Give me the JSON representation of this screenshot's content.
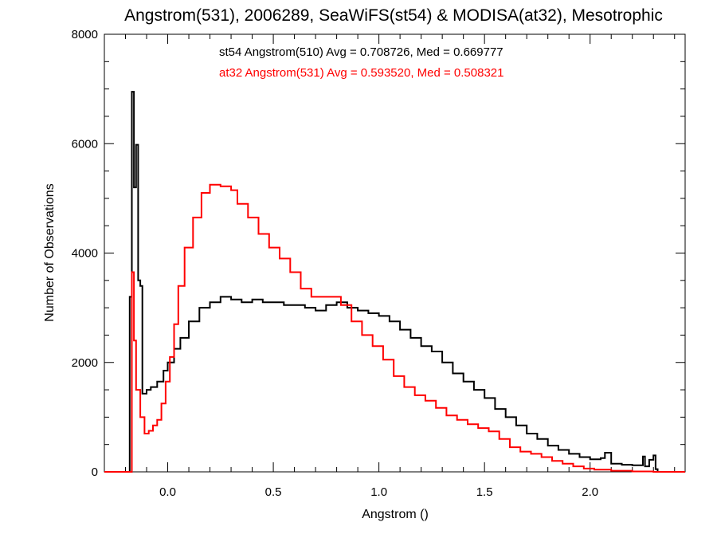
{
  "chart_data": {
    "type": "line",
    "step": true,
    "title": "Angstrom(531), 2006289, SeaWiFS(st54) & MODISA(at32), Mesotrophic",
    "xlabel": "Angstrom ()",
    "ylabel": "Number of Observations",
    "xlim": [
      -0.3,
      2.45
    ],
    "ylim": [
      0,
      8000
    ],
    "xticks": [
      0.0,
      0.5,
      1.0,
      1.5,
      2.0
    ],
    "xtick_labels": [
      "0.0",
      "0.5",
      "1.0",
      "1.5",
      "2.0"
    ],
    "yticks": [
      0,
      2000,
      4000,
      6000,
      8000
    ],
    "ytick_labels": [
      "0",
      "2000",
      "4000",
      "6000",
      "8000"
    ],
    "annotations": [
      {
        "text": "st54 Angstrom(510) Avg = 0.708726, Med = 0.669777",
        "color": "#000000"
      },
      {
        "text": "at32 Angstrom(531) Avg = 0.593520, Med = 0.508321",
        "color": "#ff0000"
      }
    ],
    "series": [
      {
        "color": "#000000",
        "points": [
          [
            -0.3,
            0
          ],
          [
            -0.19,
            0
          ],
          [
            -0.18,
            3200
          ],
          [
            -0.17,
            6950
          ],
          [
            -0.16,
            5200
          ],
          [
            -0.15,
            5980
          ],
          [
            -0.14,
            3500
          ],
          [
            -0.13,
            3400
          ],
          [
            -0.12,
            1430
          ],
          [
            -0.1,
            1500
          ],
          [
            -0.08,
            1550
          ],
          [
            -0.05,
            1650
          ],
          [
            -0.02,
            1850
          ],
          [
            0.0,
            2000
          ],
          [
            0.03,
            2250
          ],
          [
            0.06,
            2450
          ],
          [
            0.1,
            2750
          ],
          [
            0.15,
            3000
          ],
          [
            0.2,
            3100
          ],
          [
            0.25,
            3200
          ],
          [
            0.3,
            3150
          ],
          [
            0.35,
            3100
          ],
          [
            0.4,
            3150
          ],
          [
            0.45,
            3100
          ],
          [
            0.5,
            3100
          ],
          [
            0.55,
            3050
          ],
          [
            0.6,
            3050
          ],
          [
            0.65,
            3000
          ],
          [
            0.7,
            2950
          ],
          [
            0.75,
            3050
          ],
          [
            0.8,
            3100
          ],
          [
            0.85,
            3000
          ],
          [
            0.9,
            2950
          ],
          [
            0.95,
            2900
          ],
          [
            1.0,
            2850
          ],
          [
            1.05,
            2750
          ],
          [
            1.1,
            2600
          ],
          [
            1.15,
            2450
          ],
          [
            1.2,
            2300
          ],
          [
            1.25,
            2200
          ],
          [
            1.3,
            2000
          ],
          [
            1.35,
            1800
          ],
          [
            1.4,
            1650
          ],
          [
            1.45,
            1500
          ],
          [
            1.5,
            1350
          ],
          [
            1.55,
            1150
          ],
          [
            1.6,
            1000
          ],
          [
            1.65,
            850
          ],
          [
            1.7,
            700
          ],
          [
            1.75,
            600
          ],
          [
            1.8,
            480
          ],
          [
            1.85,
            400
          ],
          [
            1.9,
            330
          ],
          [
            1.95,
            270
          ],
          [
            2.0,
            230
          ],
          [
            2.05,
            250
          ],
          [
            2.07,
            350
          ],
          [
            2.1,
            150
          ],
          [
            2.15,
            130
          ],
          [
            2.2,
            120
          ],
          [
            2.25,
            280
          ],
          [
            2.26,
            100
          ],
          [
            2.28,
            220
          ],
          [
            2.3,
            300
          ],
          [
            2.31,
            50
          ],
          [
            2.32,
            0
          ],
          [
            2.45,
            0
          ]
        ]
      },
      {
        "color": "#ff0000",
        "points": [
          [
            -0.3,
            0
          ],
          [
            -0.18,
            0
          ],
          [
            -0.17,
            3650
          ],
          [
            -0.16,
            2400
          ],
          [
            -0.15,
            1500
          ],
          [
            -0.13,
            1000
          ],
          [
            -0.11,
            700
          ],
          [
            -0.09,
            750
          ],
          [
            -0.07,
            850
          ],
          [
            -0.05,
            950
          ],
          [
            -0.03,
            1250
          ],
          [
            -0.01,
            1650
          ],
          [
            0.01,
            2100
          ],
          [
            0.03,
            2700
          ],
          [
            0.05,
            3400
          ],
          [
            0.08,
            4100
          ],
          [
            0.12,
            4650
          ],
          [
            0.16,
            5100
          ],
          [
            0.2,
            5250
          ],
          [
            0.25,
            5220
          ],
          [
            0.3,
            5150
          ],
          [
            0.33,
            4900
          ],
          [
            0.38,
            4650
          ],
          [
            0.43,
            4350
          ],
          [
            0.48,
            4100
          ],
          [
            0.53,
            3900
          ],
          [
            0.58,
            3650
          ],
          [
            0.63,
            3350
          ],
          [
            0.68,
            3200
          ],
          [
            0.73,
            3200
          ],
          [
            0.78,
            3200
          ],
          [
            0.82,
            3050
          ],
          [
            0.87,
            2750
          ],
          [
            0.92,
            2500
          ],
          [
            0.97,
            2300
          ],
          [
            1.02,
            2050
          ],
          [
            1.07,
            1750
          ],
          [
            1.12,
            1550
          ],
          [
            1.17,
            1400
          ],
          [
            1.22,
            1300
          ],
          [
            1.27,
            1170
          ],
          [
            1.32,
            1030
          ],
          [
            1.37,
            950
          ],
          [
            1.42,
            870
          ],
          [
            1.47,
            800
          ],
          [
            1.52,
            740
          ],
          [
            1.57,
            600
          ],
          [
            1.62,
            450
          ],
          [
            1.67,
            370
          ],
          [
            1.72,
            330
          ],
          [
            1.77,
            270
          ],
          [
            1.82,
            200
          ],
          [
            1.87,
            150
          ],
          [
            1.92,
            100
          ],
          [
            1.97,
            60
          ],
          [
            2.02,
            40
          ],
          [
            2.1,
            20
          ],
          [
            2.2,
            8
          ],
          [
            2.3,
            0
          ],
          [
            2.45,
            0
          ]
        ]
      }
    ]
  }
}
